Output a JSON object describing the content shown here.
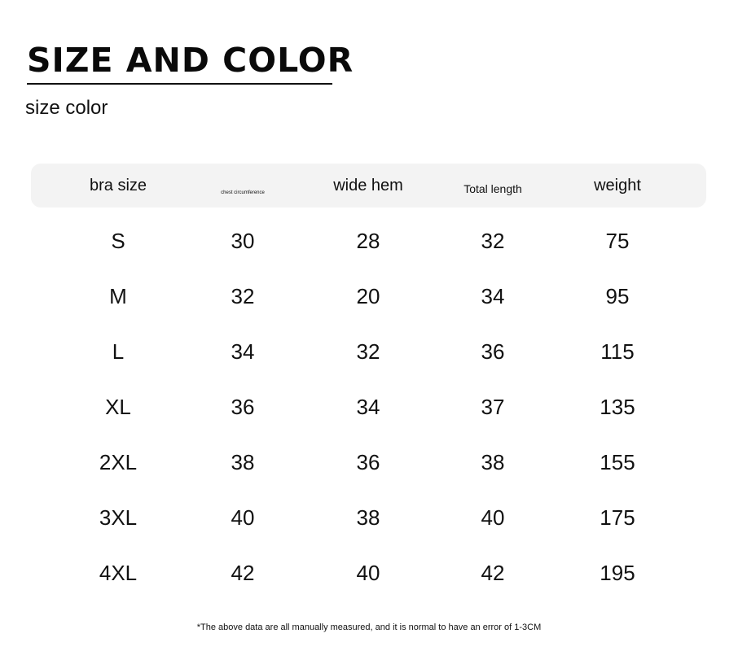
{
  "title": "SIZE AND COLOR",
  "subtitle": "size color",
  "table": {
    "headers": [
      "bra size",
      "chest circumference",
      "wide hem",
      "Total length",
      "weight"
    ],
    "rows": [
      [
        "S",
        "30",
        "28",
        "32",
        "75"
      ],
      [
        "M",
        "32",
        "20",
        "34",
        "95"
      ],
      [
        "L",
        "34",
        "32",
        "36",
        "115"
      ],
      [
        "XL",
        "36",
        "34",
        "37",
        "135"
      ],
      [
        "2XL",
        "38",
        "36",
        "38",
        "155"
      ],
      [
        "3XL",
        "40",
        "38",
        "40",
        "175"
      ],
      [
        "4XL",
        "42",
        "40",
        "42",
        "195"
      ]
    ]
  },
  "note": "*The above data are all manually measured, and it is normal to have an error of 1-3CM"
}
